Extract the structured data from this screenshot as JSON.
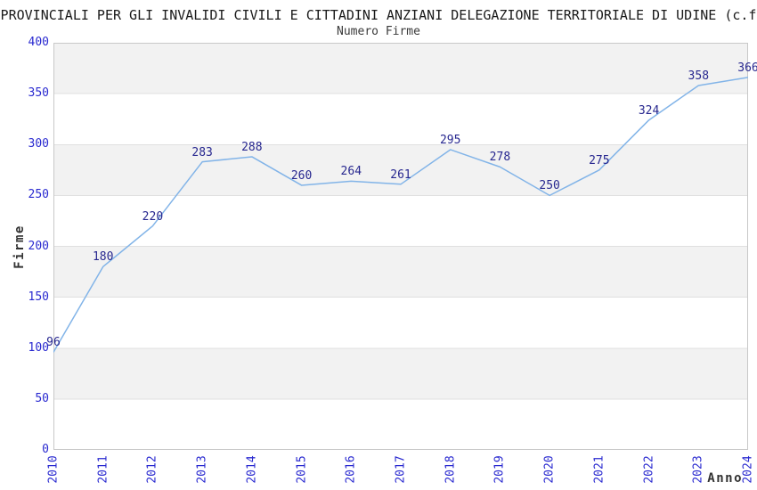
{
  "chart_data": {
    "type": "line",
    "title": "PROVINCIALI PER GLI INVALIDI CIVILI E CITTADINI ANZIANI DELEGAZIONE TERRITORIALE DI UDINE (c.f",
    "subtitle": "Numero Firme",
    "xlabel": "Anno",
    "ylabel": "Firme",
    "categories": [
      "2010",
      "2011",
      "2012",
      "2013",
      "2014",
      "2015",
      "2016",
      "2017",
      "2018",
      "2019",
      "2020",
      "2021",
      "2022",
      "2023",
      "2024"
    ],
    "series": [
      {
        "name": "Numero Firme",
        "values": [
          96,
          180,
          220,
          283,
          288,
          260,
          264,
          261,
          295,
          278,
          250,
          275,
          324,
          358,
          366
        ]
      }
    ],
    "ylim": [
      0,
      400
    ],
    "yticks": [
      0,
      50,
      100,
      150,
      200,
      250,
      300,
      350,
      400
    ],
    "grid": true,
    "legend_position": "none",
    "show_value_labels": true,
    "colors": {
      "line": "#82b4e8",
      "tick_labels": "#2a2ad0",
      "value_labels": "#27278f",
      "band": "#f2f2f2",
      "gridline": "#e0e0e0",
      "plot_border": "#c8c8c8",
      "title": "#1a1a1a",
      "axis_names": "#333333"
    }
  }
}
